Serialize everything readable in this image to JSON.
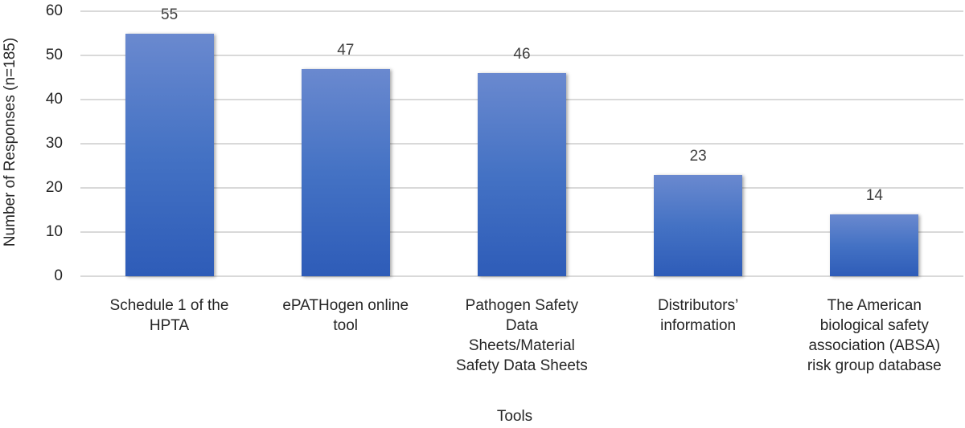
{
  "chart_data": {
    "type": "bar",
    "title": "",
    "xlabel": "Tools",
    "ylabel": "Number of Responses (n=185)",
    "ylim": [
      0,
      60
    ],
    "yticks": [
      0,
      10,
      20,
      30,
      40,
      50,
      60
    ],
    "grid": true,
    "legend": null,
    "categories": [
      "Schedule 1 of the HPTA",
      "ePATHogen online tool",
      "Pathogen Safety Data Sheets/Material Safety Data Sheets",
      "Distributors' information",
      "The American biological safety association (ABSA) risk group database"
    ],
    "category_lines": [
      [
        "Schedule 1 of the",
        "HPTA"
      ],
      [
        "ePATHogen online",
        "tool"
      ],
      [
        "Pathogen Safety",
        "Data",
        "Sheets/Material",
        "Safety Data Sheets"
      ],
      [
        "Distributors’",
        "information"
      ],
      [
        "The American",
        "biological safety",
        "association (ABSA)",
        "risk group database"
      ]
    ],
    "values": [
      55,
      47,
      46,
      23,
      14
    ],
    "bar_color": "#4472c4"
  }
}
